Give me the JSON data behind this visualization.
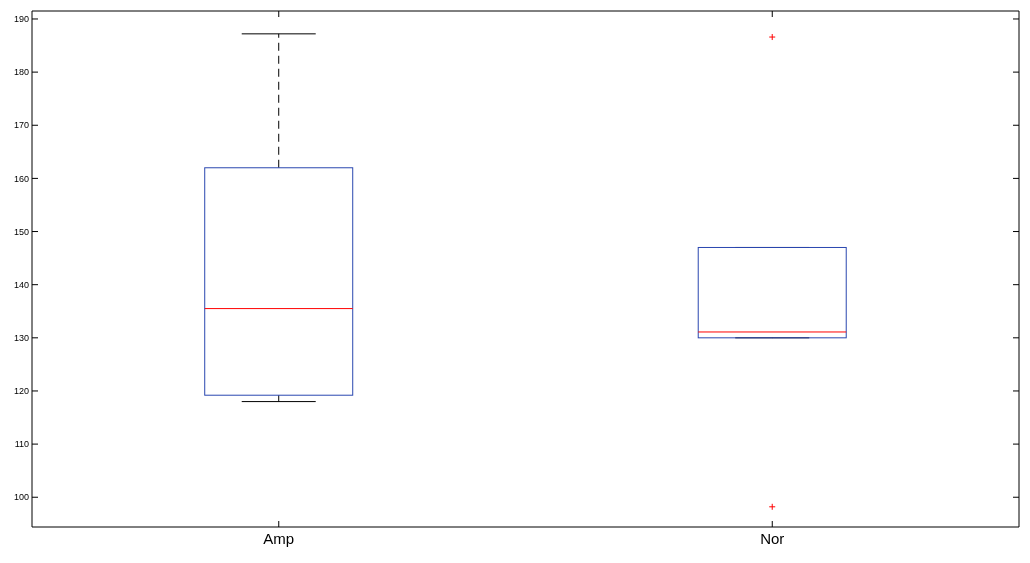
{
  "chart_data": {
    "type": "box",
    "categories": [
      "Amp",
      "Nor"
    ],
    "boxes": [
      {
        "low": 118,
        "q1": 119.2,
        "median": 135.5,
        "q3": 162,
        "high": 187.2
      },
      {
        "low": 130,
        "q1": 130,
        "median": 131.1,
        "q3": 147,
        "high": 147,
        "outliers": [
          186.6,
          98.2
        ]
      }
    ],
    "color": "#2a47b0",
    "ylim": [
      94.4,
      191.5
    ],
    "yticks": [
      100,
      110,
      120,
      130,
      140,
      150,
      160,
      170,
      180,
      190
    ],
    "line_style": "dashed"
  }
}
